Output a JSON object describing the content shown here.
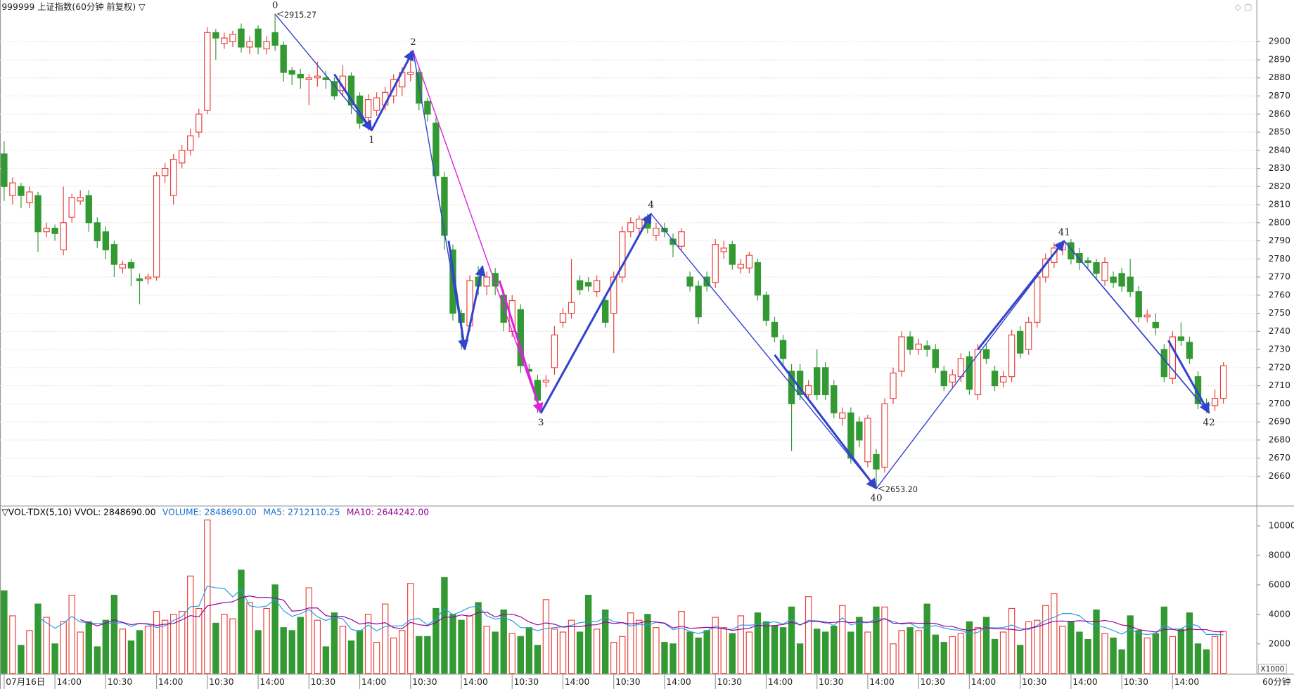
{
  "title": "999999 上证指数(60分钟 前复权) ▽",
  "period_label": "60分钟",
  "chart_data": [
    {
      "type": "candlestick",
      "up_color": "#e8413b",
      "down_color": "#339933",
      "open": [
        2838,
        2815,
        2820,
        2811,
        2815,
        2795,
        2797,
        2785,
        2803,
        2812,
        2815,
        2800,
        2795,
        2788,
        2775,
        2778,
        2769,
        2769,
        2770,
        2826,
        2815,
        2833,
        2840,
        2850,
        2862,
        2905,
        2899,
        2900,
        2907,
        2897,
        2907,
        2896,
        2905,
        2898,
        2884,
        2882,
        2879,
        2880,
        2880,
        2878,
        2873,
        2881,
        2870,
        2858,
        2862,
        2865,
        2870,
        2875,
        2882,
        2883,
        2867,
        2855,
        2825,
        2785,
        2750,
        2743,
        2770,
        2765,
        2772,
        2760,
        2740,
        2752,
        2719,
        2713,
        2712,
        2720,
        2745,
        2750,
        2768,
        2767,
        2762,
        2757,
        2750,
        2770,
        2795,
        2797,
        2803,
        2793,
        2797,
        2791,
        2787,
        2770,
        2765,
        2770,
        2767,
        2784,
        2788,
        2775,
        2775,
        2778,
        2760,
        2745,
        2735,
        2718,
        2718,
        2705,
        2720,
        2720,
        2710,
        2692,
        2695,
        2690,
        2668,
        2672,
        2665,
        2703,
        2718,
        2737,
        2730,
        2732,
        2730,
        2718,
        2712,
        2715,
        2726,
        2705,
        2730,
        2718,
        2712,
        2715,
        2740,
        2730,
        2745,
        2770,
        2778,
        2785,
        2789,
        2783,
        2779,
        2778,
        2768,
        2770,
        2772,
        2770,
        2762,
        2748,
        2745,
        2730,
        2714,
        2737,
        2734,
        2715,
        2700,
        2699,
        2703
      ],
      "high": [
        2845,
        2825,
        2822,
        2820,
        2817,
        2800,
        2799,
        2820,
        2816,
        2818,
        2818,
        2803,
        2798,
        2790,
        2779,
        2780,
        2772,
        2772,
        2828,
        2833,
        2838,
        2843,
        2852,
        2863,
        2908,
        2907,
        2905,
        2906,
        2910,
        2903,
        2909,
        2903,
        2915.27,
        2900,
        2886,
        2885,
        2882,
        2889,
        2884,
        2880,
        2887,
        2883,
        2872,
        2871,
        2872,
        2875,
        2882,
        2886,
        2895,
        2885,
        2869,
        2858,
        2828,
        2788,
        2752,
        2771,
        2776,
        2773,
        2775,
        2763,
        2760,
        2755,
        2722,
        2716,
        2716,
        2743,
        2753,
        2780,
        2771,
        2770,
        2771,
        2760,
        2773,
        2798,
        2803,
        2804,
        2805,
        2800,
        2800,
        2794,
        2797,
        2773,
        2768,
        2773,
        2791,
        2790,
        2790,
        2780,
        2784,
        2780,
        2762,
        2748,
        2738,
        2722,
        2722,
        2713,
        2730,
        2723,
        2713,
        2698,
        2698,
        2693,
        2694,
        2675,
        2703,
        2720,
        2740,
        2740,
        2736,
        2735,
        2733,
        2721,
        2719,
        2728,
        2729,
        2733,
        2733,
        2721,
        2718,
        2741,
        2743,
        2748,
        2773,
        2783,
        2789,
        2790,
        2791,
        2786,
        2781,
        2780,
        2781,
        2773,
        2775,
        2780,
        2765,
        2752,
        2750,
        2733,
        2740,
        2745,
        2737,
        2718,
        2703,
        2708,
        2723
      ],
      "low": [
        2812,
        2810,
        2808,
        2808,
        2784,
        2792,
        2790,
        2782,
        2800,
        2810,
        2795,
        2786,
        2780,
        2770,
        2772,
        2765,
        2755,
        2766,
        2768,
        2822,
        2810,
        2830,
        2837,
        2847,
        2860,
        2890,
        2896,
        2897,
        2894,
        2893,
        2893,
        2893,
        2895,
        2878,
        2876,
        2874,
        2865,
        2875,
        2874,
        2868,
        2870,
        2860,
        2852,
        2851,
        2859,
        2862,
        2866,
        2870,
        2878,
        2862,
        2856,
        2822,
        2785,
        2746,
        2730,
        2740,
        2760,
        2760,
        2760,
        2740,
        2737,
        2717,
        2714,
        2695,
        2709,
        2716,
        2742,
        2747,
        2760,
        2762,
        2759,
        2742,
        2728,
        2767,
        2792,
        2794,
        2794,
        2790,
        2792,
        2781,
        2785,
        2762,
        2744,
        2762,
        2764,
        2780,
        2774,
        2772,
        2772,
        2757,
        2743,
        2734,
        2721,
        2674,
        2702,
        2702,
        2702,
        2702,
        2692,
        2688,
        2667,
        2676,
        2665,
        2653.2,
        2662,
        2700,
        2715,
        2727,
        2727,
        2726,
        2717,
        2707,
        2709,
        2712,
        2705,
        2702,
        2722,
        2707,
        2709,
        2712,
        2725,
        2727,
        2742,
        2767,
        2775,
        2782,
        2777,
        2774,
        2775,
        2769,
        2765,
        2764,
        2762,
        2759,
        2745,
        2745,
        2738,
        2712,
        2711,
        2732,
        2722,
        2697,
        2695,
        2696,
        2700
      ],
      "close": [
        2820,
        2822,
        2815,
        2817,
        2795,
        2797,
        2794,
        2800,
        2814,
        2814,
        2800,
        2790,
        2785,
        2777,
        2777,
        2775,
        2768,
        2770,
        2826,
        2830,
        2835,
        2840,
        2848,
        2860,
        2905,
        2902,
        2902,
        2904,
        2897,
        2900,
        2897,
        2900,
        2898,
        2883,
        2882,
        2880,
        2880,
        2881,
        2879,
        2870,
        2881,
        2865,
        2855,
        2868,
        2869,
        2872,
        2879,
        2883,
        2883,
        2866,
        2860,
        2826,
        2793,
        2750,
        2745,
        2768,
        2765,
        2770,
        2765,
        2745,
        2757,
        2721,
        2718,
        2702,
        2713,
        2738,
        2750,
        2756,
        2763,
        2765,
        2768,
        2745,
        2770,
        2795,
        2800,
        2802,
        2797,
        2797,
        2795,
        2788,
        2795,
        2765,
        2748,
        2765,
        2788,
        2786,
        2777,
        2777,
        2782,
        2760,
        2746,
        2737,
        2725,
        2700,
        2705,
        2710,
        2705,
        2705,
        2695,
        2695,
        2670,
        2680,
        2692,
        2664,
        2700,
        2717,
        2737,
        2730,
        2733,
        2730,
        2720,
        2710,
        2716,
        2725,
        2708,
        2730,
        2725,
        2710,
        2715,
        2738,
        2728,
        2745,
        2770,
        2780,
        2786,
        2789,
        2780,
        2778,
        2778,
        2772,
        2778,
        2767,
        2765,
        2762,
        2748,
        2749,
        2742,
        2715,
        2737,
        2735,
        2725,
        2700,
        2699,
        2703,
        2721
      ],
      "ylim": [
        2644,
        2923
      ],
      "yticks": [
        2660,
        2670,
        2680,
        2690,
        2700,
        2710,
        2720,
        2730,
        2740,
        2750,
        2760,
        2770,
        2780,
        2790,
        2800,
        2810,
        2820,
        2830,
        2840,
        2850,
        2860,
        2870,
        2880,
        2890,
        2900
      ],
      "grid": true,
      "xticks": [
        {
          "value": 0,
          "label": "07月16日"
        },
        {
          "value": 6,
          "label": "14:00"
        },
        {
          "value": 12,
          "label": "10:30"
        },
        {
          "value": 18,
          "label": "14:00"
        },
        {
          "value": 24,
          "label": "10:30"
        },
        {
          "value": 30,
          "label": "14:00"
        },
        {
          "value": 36,
          "label": "10:30"
        },
        {
          "value": 42,
          "label": "14:00"
        },
        {
          "value": 48,
          "label": "10:30"
        },
        {
          "value": 54,
          "label": "14:00"
        },
        {
          "value": 60,
          "label": "10:30"
        },
        {
          "value": 66,
          "label": "14:00"
        },
        {
          "value": 72,
          "label": "10:30"
        },
        {
          "value": 78,
          "label": "14:00"
        },
        {
          "value": 84,
          "label": "10:30"
        },
        {
          "value": 90,
          "label": "14:00"
        },
        {
          "value": 96,
          "label": "10:30"
        },
        {
          "value": 102,
          "label": "14:00"
        },
        {
          "value": 108,
          "label": "10:30"
        },
        {
          "value": 114,
          "label": "14:00"
        },
        {
          "value": 120,
          "label": "10:30"
        },
        {
          "value": 126,
          "label": "14:00"
        },
        {
          "value": 132,
          "label": "10:30"
        },
        {
          "value": 138,
          "label": "14:00"
        }
      ],
      "pivots": [
        {
          "label": "0",
          "index": 32,
          "value": 2915.27,
          "side": "above",
          "price_label": "2915.27"
        },
        {
          "label": "1",
          "index": 43.4,
          "value": 2851,
          "side": "below"
        },
        {
          "label": "2",
          "index": 48.3,
          "value": 2895,
          "side": "above"
        },
        {
          "label": "3",
          "index": 63.4,
          "value": 2695,
          "side": "below"
        },
        {
          "label": "4",
          "index": 76.4,
          "value": 2805,
          "side": "above"
        },
        {
          "label": "40",
          "index": 103,
          "value": 2653.2,
          "side": "below",
          "price_label": "2653.20"
        },
        {
          "label": "41",
          "index": 125.2,
          "value": 2790,
          "side": "above"
        },
        {
          "label": "42",
          "index": 142.3,
          "value": 2695,
          "side": "below"
        }
      ],
      "lines": [
        {
          "from": [
            32,
            2915.27
          ],
          "to": [
            43.4,
            2851
          ],
          "color": "#3344cc",
          "width": 1.2
        },
        {
          "from": [
            43.4,
            2851
          ],
          "to": [
            48.3,
            2895
          ],
          "color": "#3344cc",
          "width": 1.2
        },
        {
          "from": [
            48.3,
            2895
          ],
          "to": [
            54.4,
            2730
          ],
          "color": "#3344cc",
          "width": 1.2
        },
        {
          "from": [
            48.3,
            2895
          ],
          "to": [
            63.4,
            2695
          ],
          "color": "#dd22dd",
          "width": 1.2
        },
        {
          "from": [
            76.4,
            2805
          ],
          "to": [
            103,
            2653.2
          ],
          "color": "#3344cc",
          "width": 1.2
        },
        {
          "from": [
            103,
            2653.2
          ],
          "to": [
            125.2,
            2790
          ],
          "color": "#3344cc",
          "width": 1.2
        },
        {
          "from": [
            125.2,
            2790
          ],
          "to": [
            142.3,
            2695
          ],
          "color": "#3344cc",
          "width": 1.5
        }
      ],
      "arrows": [
        {
          "from": [
            39,
            2882
          ],
          "to": [
            43.4,
            2851
          ],
          "color": "#3344cc"
        },
        {
          "from": [
            43.4,
            2851
          ],
          "to": [
            48.3,
            2895
          ],
          "color": "#3344cc"
        },
        {
          "from": [
            52.5,
            2790
          ],
          "to": [
            54.4,
            2730
          ],
          "color": "#3344cc"
        },
        {
          "from": [
            54.4,
            2730
          ],
          "to": [
            56.5,
            2776
          ],
          "color": "#3344cc"
        },
        {
          "from": [
            58.5,
            2768
          ],
          "to": [
            63.4,
            2695
          ],
          "color": "#dd22dd"
        },
        {
          "from": [
            63.4,
            2695
          ],
          "to": [
            76.4,
            2805
          ],
          "color": "#3344cc"
        },
        {
          "from": [
            91,
            2727
          ],
          "to": [
            103,
            2653.2
          ],
          "color": "#3344cc"
        },
        {
          "from": [
            115,
            2730
          ],
          "to": [
            125.2,
            2790
          ],
          "color": "#3344cc"
        },
        {
          "from": [
            137.5,
            2735
          ],
          "to": [
            142.3,
            2695
          ],
          "color": "#3344cc"
        }
      ]
    },
    {
      "type": "volume",
      "legend": [
        {
          "text": "▽VOL-TDX(5,10)  VVOL: 2848690.00",
          "color": "#000000"
        },
        {
          "text": "VOLUME: 2848690.00",
          "color": "#1a6fd0"
        },
        {
          "text": "MA5: 2712110.25",
          "color": "#1a6fd0"
        },
        {
          "text": "MA10: 2644242.00",
          "color": "#990099"
        }
      ],
      "values": [
        5600,
        3900,
        1900,
        2900,
        4700,
        3800,
        2000,
        3500,
        5300,
        2800,
        3500,
        1800,
        3600,
        5300,
        3000,
        2200,
        2900,
        3200,
        4200,
        3600,
        4000,
        4200,
        6600,
        4400,
        10400,
        3400,
        4000,
        3700,
        7000,
        4800,
        2900,
        4400,
        6000,
        3100,
        2900,
        3800,
        5800,
        3600,
        1800,
        4100,
        3200,
        2200,
        2900,
        4000,
        2100,
        4700,
        2400,
        2900,
        6100,
        2500,
        2500,
        4400,
        6500,
        4000,
        3600,
        3900,
        4800,
        3200,
        2800,
        4300,
        2700,
        2500,
        3100,
        1900,
        5000,
        3000,
        2800,
        3600,
        2800,
        5300,
        3000,
        4300,
        2100,
        2500,
        4100,
        3600,
        4000,
        3100,
        2100,
        2000,
        4200,
        2800,
        2400,
        2900,
        3800,
        3100,
        2700,
        3900,
        2800,
        4100,
        3500,
        3200,
        3100,
        4500,
        2000,
        5200,
        3000,
        2800,
        3200,
        4600,
        2800,
        3800,
        2800,
        4500,
        4500,
        2000,
        2900,
        3100,
        2900,
        4700,
        2600,
        2100,
        2500,
        2700,
        3500,
        3100,
        3800,
        2300,
        2800,
        4400,
        1900,
        3500,
        3600,
        4600,
        5400,
        3200,
        3500,
        2800,
        2300,
        4300,
        2700,
        2400,
        1600,
        3900,
        2900,
        2400,
        2700,
        4500,
        2500,
        3000,
        4100,
        2000,
        1600,
        2500,
        2848.69
      ],
      "ma": [
        {
          "period": 5,
          "color": "#2a9ae0"
        },
        {
          "period": 10,
          "color": "#990099"
        }
      ],
      "ylim": [
        0,
        11290
      ],
      "yticks": [
        2000,
        4000,
        6000,
        8000,
        10000
      ],
      "axis_unit": "X1000"
    }
  ]
}
